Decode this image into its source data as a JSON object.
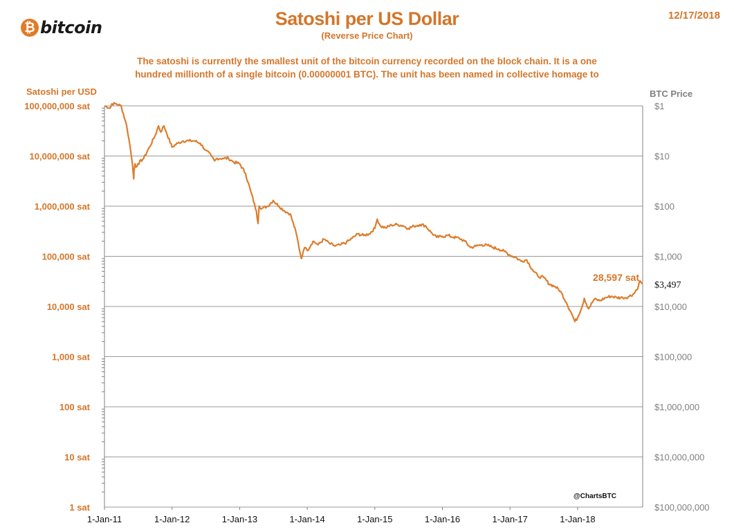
{
  "header": {
    "logo_symbol": "₿",
    "logo_text": "bitcoin",
    "title": "Satoshi per US Dollar",
    "subtitle": "(Reverse Price Chart)",
    "date": "12/17/2018",
    "description_line1": "The satoshi is currently the smallest unit of the bitcoin currency recorded on the block chain. It is a one",
    "description_line2": "hundred millionth of a single bitcoin (0.00000001 BTC). The unit has been named in collective homage to"
  },
  "colors": {
    "accent": "#d4762a",
    "line": "#dc7d2c",
    "grid": "#9a9a9a",
    "right_axis_text": "#7f7f7f"
  },
  "chart_data": {
    "type": "line",
    "title": "Satoshi per US Dollar",
    "subtitle": "(Reverse Price Chart)",
    "ylabel_left": "Satoshi per USD",
    "ylabel_right": "BTC Price",
    "y_scale": "log",
    "ylim": [
      1,
      100000000
    ],
    "y_ticks_left": [
      "100,000,000 sat",
      "10,000,000 sat",
      "1,000,000 sat",
      "100,000 sat",
      "10,000 sat",
      "1,000 sat",
      "100 sat",
      "10 sat",
      "1 sat"
    ],
    "y_ticks_right": [
      "$1",
      "$10",
      "$100",
      "$1,000",
      "$10,000",
      "$100,000",
      "$1,000,000",
      "$10,000,000",
      "$100,000,000"
    ],
    "x_ticks": [
      "1-Jan-11",
      "1-Jan-12",
      "1-Jan-13",
      "1-Jan-14",
      "1-Jan-15",
      "1-Jan-16",
      "1-Jan-17",
      "1-Jan-18"
    ],
    "grid": true,
    "annotations": {
      "last_value_label": "28,597 sat",
      "last_price_label": "$3,497",
      "credit": "@ChartsBTC"
    },
    "series": [
      {
        "x": [
          "2011-01-01",
          "2011-02-01",
          "2011-02-10",
          "2011-03-01",
          "2011-04-01",
          "2011-05-01",
          "2011-05-15",
          "2011-06-01",
          "2011-06-08",
          "2011-06-10",
          "2011-06-15",
          "2011-06-20",
          "2011-07-01",
          "2011-08-01",
          "2011-09-01",
          "2011-10-01",
          "2011-10-20",
          "2011-11-01",
          "2011-11-18",
          "2011-12-01",
          "2012-01-01",
          "2012-02-01",
          "2012-03-01",
          "2012-04-01",
          "2012-05-01",
          "2012-06-01",
          "2012-07-01",
          "2012-08-01",
          "2012-08-18",
          "2012-09-01",
          "2012-10-01",
          "2012-11-01",
          "2012-12-01",
          "2013-01-01",
          "2013-02-01",
          "2013-03-01",
          "2013-04-01",
          "2013-04-10",
          "2013-04-16",
          "2013-05-01",
          "2013-06-01",
          "2013-07-01",
          "2013-08-01",
          "2013-09-01",
          "2013-10-01",
          "2013-11-01",
          "2013-11-30",
          "2013-12-10",
          "2013-12-18",
          "2014-01-01",
          "2014-02-01",
          "2014-03-01",
          "2014-04-01",
          "2014-05-01",
          "2014-06-01",
          "2014-07-01",
          "2014-08-01",
          "2014-09-01",
          "2014-10-01",
          "2014-11-01",
          "2014-12-01",
          "2015-01-01",
          "2015-01-14",
          "2015-02-01",
          "2015-03-01",
          "2015-04-01",
          "2015-05-01",
          "2015-06-01",
          "2015-07-01",
          "2015-08-01",
          "2015-09-01",
          "2015-10-01",
          "2015-11-01",
          "2015-12-01",
          "2016-01-01",
          "2016-02-01",
          "2016-03-01",
          "2016-04-01",
          "2016-05-01",
          "2016-06-01",
          "2016-07-01",
          "2016-08-01",
          "2016-09-01",
          "2016-10-01",
          "2016-11-01",
          "2016-12-01",
          "2017-01-01",
          "2017-02-01",
          "2017-03-01",
          "2017-04-01",
          "2017-05-01",
          "2017-06-01",
          "2017-07-01",
          "2017-08-01",
          "2017-09-01",
          "2017-10-01",
          "2017-11-01",
          "2017-12-01",
          "2017-12-17",
          "2018-01-01",
          "2018-02-01",
          "2018-02-06",
          "2018-03-01",
          "2018-04-01",
          "2018-05-01",
          "2018-06-01",
          "2018-07-01",
          "2018-08-01",
          "2018-09-01",
          "2018-10-01",
          "2018-11-01",
          "2018-11-25",
          "2018-12-01",
          "2018-12-17"
        ],
        "y": [
          100000000,
          90000000,
          110000000,
          110000000,
          100000000,
          40000000,
          20000000,
          7000000,
          3500000,
          5000000,
          7000000,
          6000000,
          7000000,
          9000000,
          15000000,
          25000000,
          40000000,
          30000000,
          40000000,
          30000000,
          15000000,
          18000000,
          20000000,
          20000000,
          20000000,
          18000000,
          13000000,
          10000000,
          8000000,
          9000000,
          9000000,
          9000000,
          7500000,
          7000000,
          4500000,
          2000000,
          800000,
          450000,
          1000000,
          900000,
          1000000,
          1300000,
          1000000,
          800000,
          700000,
          300000,
          90000,
          125000,
          150000,
          130000,
          200000,
          170000,
          220000,
          180000,
          160000,
          170000,
          190000,
          230000,
          280000,
          260000,
          280000,
          360000,
          550000,
          400000,
          370000,
          420000,
          430000,
          410000,
          360000,
          400000,
          430000,
          410000,
          300000,
          240000,
          250000,
          260000,
          240000,
          230000,
          200000,
          150000,
          160000,
          170000,
          165000,
          150000,
          140000,
          125000,
          105000,
          95000,
          80000,
          85000,
          55000,
          40000,
          38000,
          28000,
          25000,
          20000,
          12000,
          7000,
          5000,
          6000,
          12000,
          14500,
          9000,
          14000,
          13000,
          15000,
          16000,
          15000,
          15000,
          15500,
          18000,
          25000,
          32000,
          28597
        ]
      }
    ]
  }
}
